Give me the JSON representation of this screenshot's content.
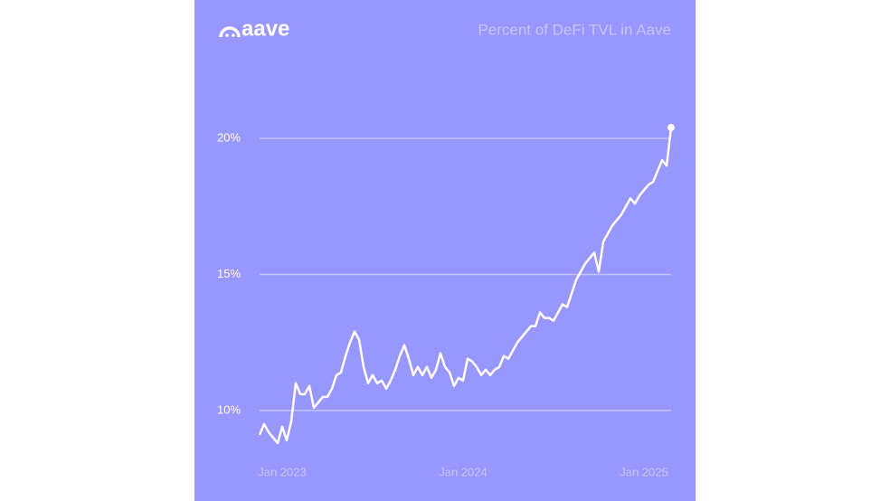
{
  "logo": "aave",
  "chart_data": {
    "type": "line",
    "title": "Percent of DeFi TVL in Aave",
    "x": [
      2022.875,
      2022.9,
      2022.925,
      2022.95,
      2022.975,
      2023,
      2023.025,
      2023.05,
      2023.075,
      2023.1,
      2023.125,
      2023.15,
      2023.175,
      2023.2,
      2023.225,
      2023.25,
      2023.275,
      2023.3,
      2023.325,
      2023.35,
      2023.375,
      2023.4,
      2023.425,
      2023.45,
      2023.475,
      2023.5,
      2023.525,
      2023.55,
      2023.575,
      2023.6,
      2023.625,
      2023.65,
      2023.675,
      2023.7,
      2023.725,
      2023.75,
      2023.775,
      2023.8,
      2023.825,
      2023.85,
      2023.875,
      2023.9,
      2023.925,
      2023.95,
      2023.975,
      2024,
      2024.025,
      2024.05,
      2024.075,
      2024.1,
      2024.125,
      2024.15,
      2024.175,
      2024.2,
      2024.225,
      2024.25,
      2024.275,
      2024.3,
      2024.325,
      2024.35,
      2024.375,
      2024.4,
      2024.425,
      2024.45,
      2024.475,
      2024.5,
      2024.525,
      2024.55,
      2024.575,
      2024.6,
      2024.625,
      2024.65,
      2024.675,
      2024.7,
      2024.725,
      2024.75,
      2024.775,
      2024.8,
      2024.825,
      2024.85,
      2024.875,
      2024.9,
      2024.925,
      2024.95,
      2024.975,
      2025,
      2025.025,
      2025.05,
      2025.075,
      2025.1,
      2025.125,
      2025.15
    ],
    "series": [
      {
        "color": "#ffffff",
        "values": [
          9.1,
          9.5,
          9.2,
          9.0,
          8.8,
          9.4,
          8.9,
          9.6,
          11.0,
          10.6,
          10.6,
          10.9,
          10.1,
          10.3,
          10.5,
          10.5,
          10.8,
          11.3,
          11.4,
          12.0,
          12.5,
          12.9,
          12.6,
          11.6,
          11.0,
          11.3,
          11.0,
          11.1,
          10.8,
          11.1,
          11.5,
          12.0,
          12.4,
          11.9,
          11.3,
          11.6,
          11.3,
          11.6,
          11.2,
          11.5,
          12.1,
          11.6,
          11.4,
          10.9,
          11.2,
          11.1,
          11.9,
          11.8,
          11.6,
          11.3,
          11.5,
          11.3,
          11.5,
          11.6,
          12.0,
          11.9,
          12.2,
          12.5,
          12.7,
          12.9,
          13.1,
          13.1,
          13.6,
          13.4,
          13.4,
          13.3,
          13.6,
          13.9,
          13.8,
          14.3,
          14.8,
          15.1,
          15.4,
          15.6,
          15.8,
          15.1,
          16.2,
          16.5,
          16.8,
          17.0,
          17.2,
          17.5,
          17.8,
          17.6,
          17.9,
          18.1,
          18.3,
          18.4,
          18.8,
          19.2,
          19.0,
          20.4
        ]
      }
    ],
    "xlim": [
      2022.875,
      2025.15
    ],
    "xticks": [
      {
        "value": 2023,
        "label": "Jan 2023"
      },
      {
        "value": 2024,
        "label": "Jan 2024"
      },
      {
        "value": 2025,
        "label": "Jan 2025"
      }
    ],
    "ylim": [
      8.5,
      21
    ],
    "yticks": [
      {
        "value": 10,
        "label": "10%"
      },
      {
        "value": 15,
        "label": "15%"
      },
      {
        "value": 20,
        "label": "20%"
      }
    ],
    "grid": true
  }
}
